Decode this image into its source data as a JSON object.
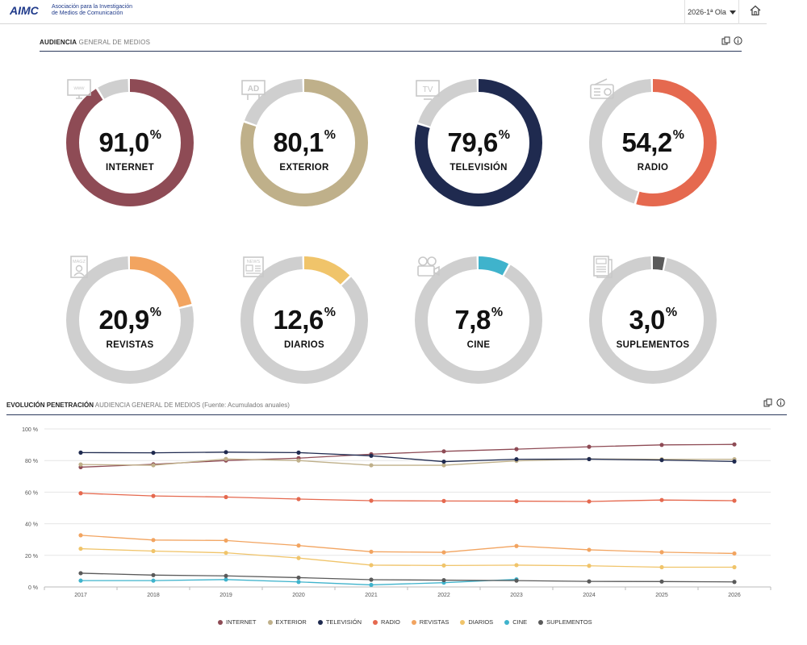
{
  "header": {
    "logo_text": "AIMC",
    "org_line1": "Asociación para la Investigación",
    "org_line2": "de Medios de Comunicación",
    "wave": "2026-1ª Ola"
  },
  "section1": {
    "title_bold": "AUDIENCIA",
    "title_rest": " GENERAL DE MEDIOS"
  },
  "donuts": [
    {
      "label": "INTERNET",
      "value": 91.0,
      "value_text": "91,0",
      "color": "#8e4b55",
      "icon": "www-monitor-icon"
    },
    {
      "label": "EXTERIOR",
      "value": 80.1,
      "value_text": "80,1",
      "color": "#bfb08a",
      "icon": "billboard-ad-icon"
    },
    {
      "label": "TELEVISIÓN",
      "value": 79.6,
      "value_text": "79,6",
      "color": "#1f2a4f",
      "icon": "tv-icon"
    },
    {
      "label": "RADIO",
      "value": 54.2,
      "value_text": "54,2",
      "color": "#e5694f",
      "icon": "radio-icon"
    },
    {
      "label": "REVISTAS",
      "value": 20.9,
      "value_text": "20,9",
      "color": "#f2a460",
      "icon": "magazine-icon"
    },
    {
      "label": "DIARIOS",
      "value": 12.6,
      "value_text": "12,6",
      "color": "#f0c46a",
      "icon": "newspaper-icon"
    },
    {
      "label": "CINE",
      "value": 7.8,
      "value_text": "7,8",
      "color": "#3fb3cc",
      "icon": "film-camera-icon"
    },
    {
      "label": "SUPLEMENTOS",
      "value": 3.0,
      "value_text": "3,0",
      "color": "#5a5a5a",
      "icon": "supplement-icon"
    }
  ],
  "percent_sign": "%",
  "section2": {
    "title_bold": "EVOLUCIÓN PENETRACIÓN",
    "title_rest": " AUDIENCIA GENERAL DE MEDIOS (Fuente: Acumulados anuales)"
  },
  "chart_data": {
    "type": "line",
    "x": [
      "2017",
      "2018",
      "2019",
      "2020",
      "2021",
      "2022",
      "2023",
      "2024",
      "2025",
      "2026"
    ],
    "ylim": [
      0,
      100
    ],
    "yticks": [
      "0 %",
      "20 %",
      "40 %",
      "60 %",
      "80 %",
      "100 %"
    ],
    "grid": true,
    "legend_position": "bottom",
    "series": [
      {
        "name": "INTERNET",
        "color": "#8e4b55",
        "values": [
          75.8,
          77.6,
          80.0,
          81.5,
          84.0,
          85.8,
          87.2,
          88.7,
          89.9,
          90.2
        ]
      },
      {
        "name": "EXTERIOR",
        "color": "#bfb08a",
        "values": [
          77.5,
          77.0,
          81.0,
          80.0,
          77.0,
          77.0,
          79.8,
          81.0,
          80.8,
          80.8
        ]
      },
      {
        "name": "TELEVISIÓN",
        "color": "#1f2a4f",
        "values": [
          85.0,
          84.9,
          85.3,
          85.0,
          83.0,
          79.3,
          80.8,
          80.9,
          80.3,
          79.4
        ]
      },
      {
        "name": "RADIO",
        "color": "#e5694f",
        "values": [
          59.3,
          57.6,
          56.9,
          55.6,
          54.6,
          54.4,
          54.3,
          54.1,
          55.0,
          54.6
        ]
      },
      {
        "name": "REVISTAS",
        "color": "#f2a460",
        "values": [
          32.7,
          29.7,
          29.4,
          26.2,
          22.3,
          21.9,
          25.9,
          23.5,
          22.0,
          21.2
        ]
      },
      {
        "name": "DIARIOS",
        "color": "#f0c46a",
        "values": [
          24.2,
          22.7,
          21.6,
          18.3,
          13.8,
          13.6,
          13.8,
          13.4,
          12.5,
          12.5
        ]
      },
      {
        "name": "CINE",
        "color": "#3fb3cc",
        "values": [
          4.0,
          4.0,
          4.7,
          3.2,
          1.3,
          2.7,
          4.8,
          null,
          null,
          null
        ]
      },
      {
        "name": "SUPLEMENTOS",
        "color": "#5a5a5a",
        "values": [
          8.7,
          7.5,
          7.0,
          5.9,
          4.6,
          4.3,
          4.0,
          3.5,
          3.4,
          3.2
        ]
      }
    ]
  }
}
